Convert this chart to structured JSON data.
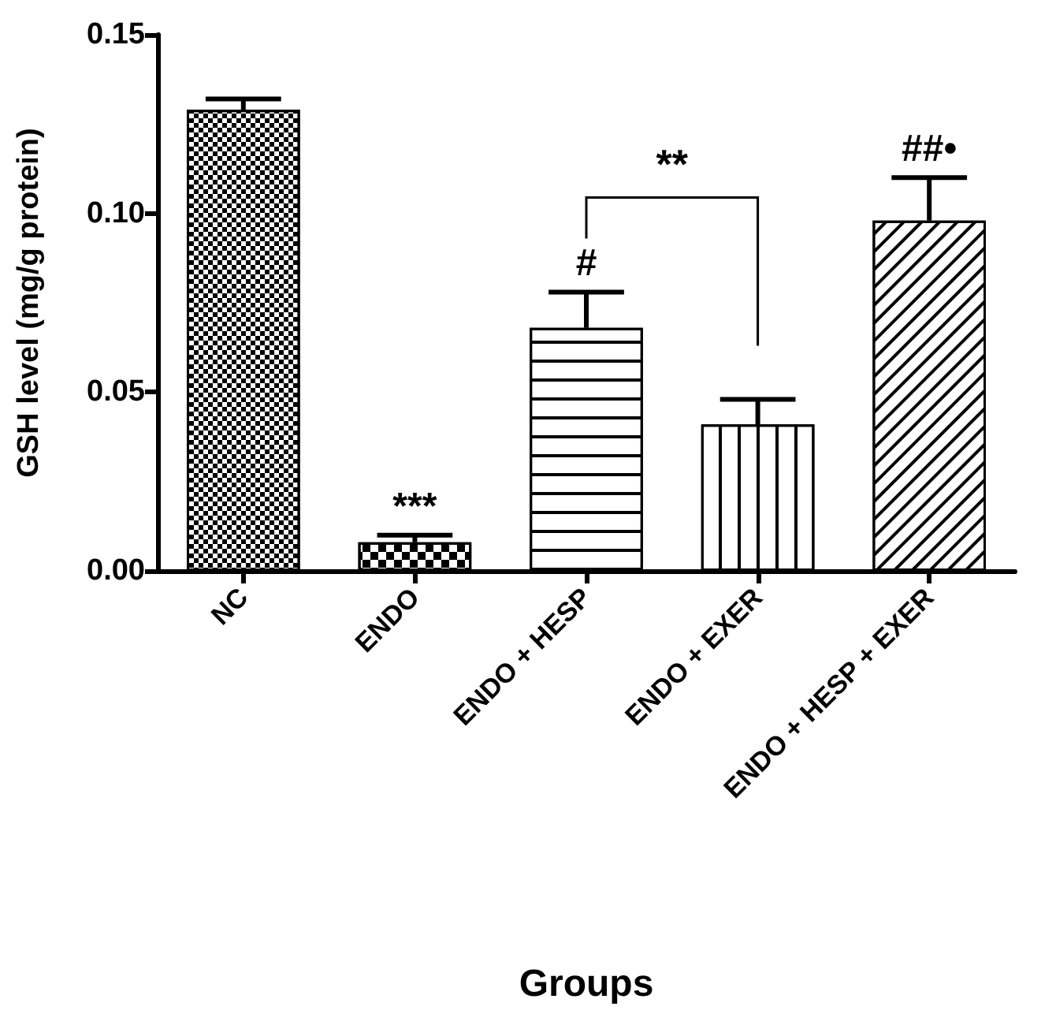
{
  "chart_data": {
    "type": "bar",
    "xlabel": "Groups",
    "ylabel": "GSH level (mg/g protein)",
    "categories": [
      "NC",
      "ENDO",
      "ENDO + HESP",
      "ENDO + EXER",
      "ENDO + HESP + EXER"
    ],
    "values": [
      0.129,
      0.008,
      0.068,
      0.041,
      0.098
    ],
    "errors": [
      [
        0.129,
        0.132
      ],
      [
        0.008,
        0.01
      ],
      [
        0.068,
        0.078
      ],
      [
        0.041,
        0.048
      ],
      [
        0.098,
        0.11
      ]
    ],
    "color": "#ffffff",
    "ylim": [
      0,
      0.15
    ],
    "yticks": [
      {
        "value": 0,
        "label": "0.00"
      },
      {
        "value": 0.05,
        "label": "0.05"
      },
      {
        "value": 0.1,
        "label": "0.10"
      },
      {
        "value": 0.15,
        "label": "0.15"
      }
    ],
    "grid": false,
    "annotations": [
      {
        "text": "***",
        "x": "ENDO",
        "y": 0.01
      },
      {
        "text": "#",
        "x": "ENDO + HESP",
        "y": 0.078
      },
      "**",
      {
        "text": "##•",
        "x": "ENDO + HESP + EXER",
        "y": 0.11
      }
    ]
  }
}
